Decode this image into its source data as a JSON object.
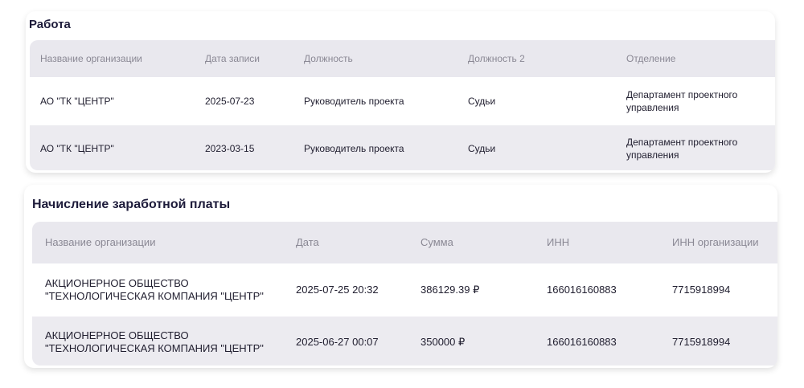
{
  "work": {
    "title": "Работа",
    "columns": [
      "Название организации",
      "Дата записи",
      "Должность",
      "Должность 2",
      "Отделение"
    ],
    "rows": [
      [
        "АО \"ТК \"ЦЕНТР\"",
        "2025-07-23",
        "Руководитель проекта",
        "Судьи",
        "Департамент проектного управления"
      ],
      [
        "АО \"ТК \"ЦЕНТР\"",
        "2023-03-15",
        "Руководитель проекта",
        "Судьи",
        "Департамент проектного управления"
      ]
    ]
  },
  "salary": {
    "title": "Начисление заработной платы",
    "columns": [
      "Название организации",
      "Дата",
      "Сумма",
      "ИНН",
      "ИНН организации"
    ],
    "rows": [
      [
        "АКЦИОНЕРНОЕ ОБЩЕСТВО \"ТЕХНОЛОГИЧЕСКАЯ КОМПАНИЯ \"ЦЕНТР\"",
        "2025-07-25 20:32",
        "386129.39 ₽",
        "166016160883",
        "7715918994"
      ],
      [
        "АКЦИОНЕРНОЕ ОБЩЕСТВО \"ТЕХНОЛОГИЧЕСКАЯ КОМПАНИЯ \"ЦЕНТР\"",
        "2025-06-27 00:07",
        "350000 ₽",
        "166016160883",
        "7715918994"
      ]
    ]
  }
}
